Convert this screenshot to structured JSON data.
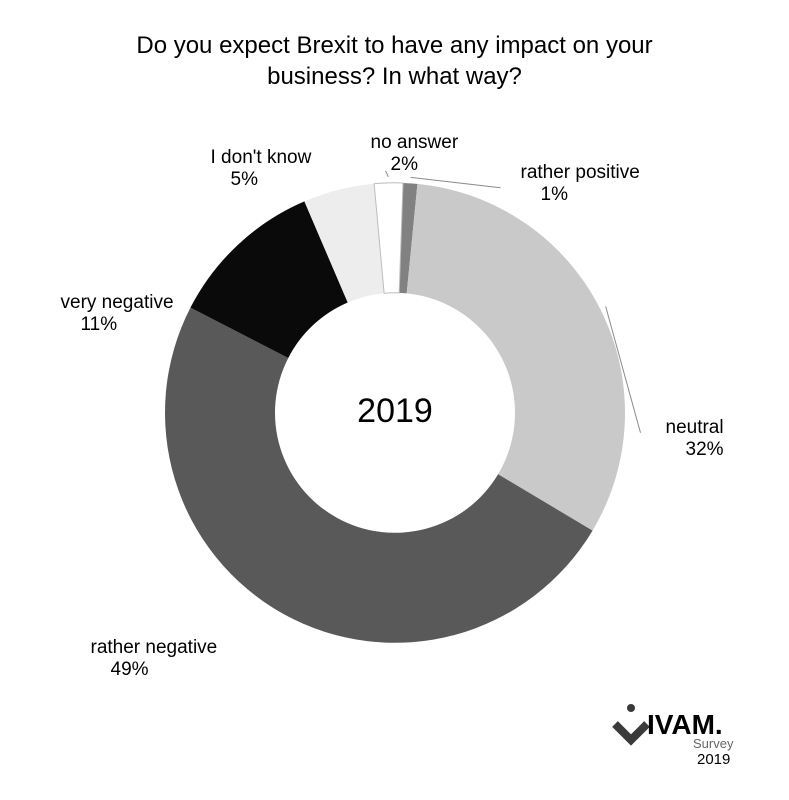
{
  "chart": {
    "type": "pie",
    "title_line1": "Do you expect Brexit to have any impact on your",
    "title_line2": "business? In what way?",
    "title_fontsize": 24,
    "center_label": "2019",
    "center_fontsize": 34,
    "background_color": "#ffffff",
    "donut_inner_radius": 120,
    "donut_outer_radius": 230,
    "start_angle_deg": -90,
    "direction": "clockwise",
    "slices": [
      {
        "label": "rather positive",
        "value": 1,
        "pct_text": "1%",
        "color": "#818181"
      },
      {
        "label": "neutral",
        "value": 32,
        "pct_text": "32%",
        "color": "#c9c9c9"
      },
      {
        "label": "rather negative",
        "value": 49,
        "pct_text": "49%",
        "color": "#595959"
      },
      {
        "label": "very negative",
        "value": 11,
        "pct_text": "11%",
        "color": "#0a0a0a"
      },
      {
        "label": "I don't know",
        "value": 5,
        "pct_text": "5%",
        "color": "#ededed"
      },
      {
        "label": "no answer",
        "value": 2,
        "pct_text": "2%",
        "color": "#ffffff",
        "stroke": "#bdbdbd"
      }
    ],
    "label_fontsize": 19,
    "leader_color": "#8a8a8a"
  },
  "branding": {
    "name": "IVAM.",
    "subtitle": "Survey",
    "year": "2019"
  }
}
